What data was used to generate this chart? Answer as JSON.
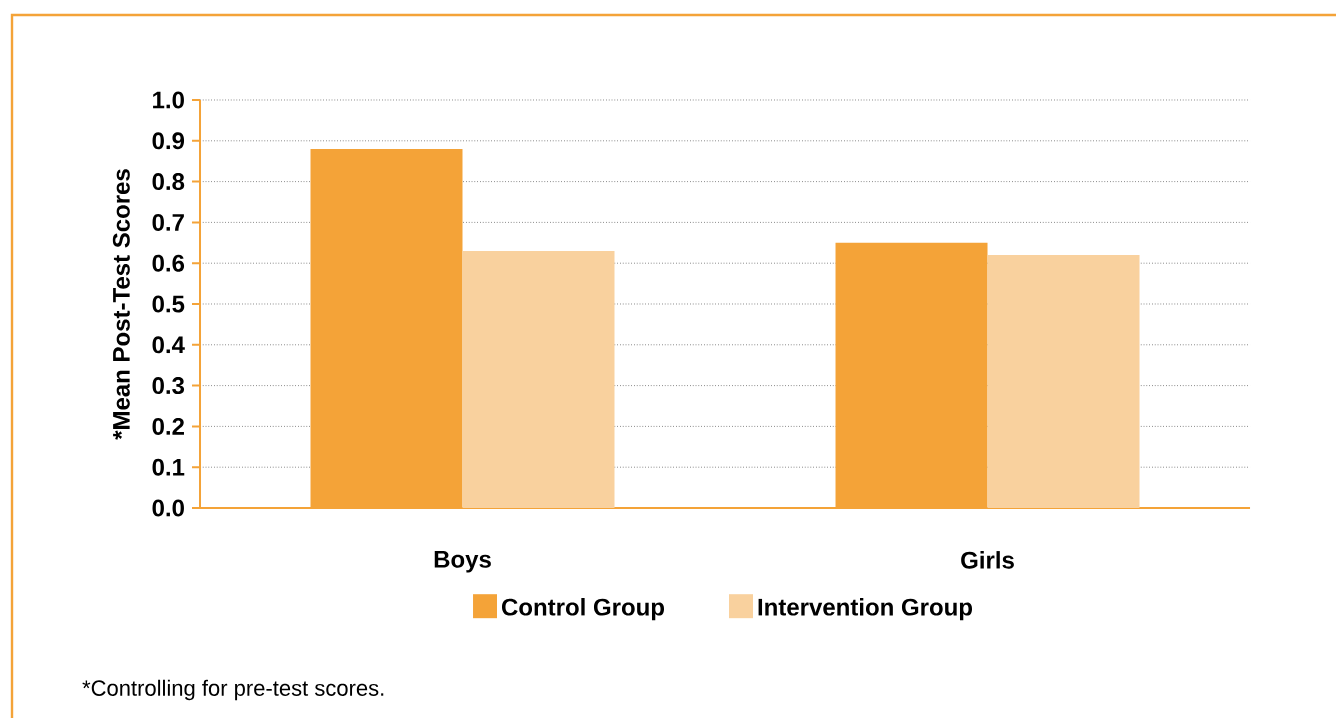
{
  "chart_data": {
    "type": "bar",
    "ylabel": "*Mean Post-Test Scores",
    "categories": [
      "Boys",
      "Girls"
    ],
    "series": [
      {
        "name": "Control Group",
        "color": "#f4a338",
        "values": [
          0.88,
          0.65
        ]
      },
      {
        "name": "Intervention Group",
        "color": "#f9d19e",
        "values": [
          0.63,
          0.62
        ]
      }
    ],
    "ylim": [
      0,
      1
    ],
    "yticks": [
      {
        "value": 0,
        "label": "0.0"
      },
      0.1,
      0.2,
      0.3,
      0.4,
      0.5,
      0.6,
      0.7,
      0.8,
      0.9,
      {
        "value": 1,
        "label": "1.0"
      }
    ],
    "grid": "y",
    "legend": "bottom",
    "annotations": [
      "*Controlling for pre-test scores."
    ]
  }
}
